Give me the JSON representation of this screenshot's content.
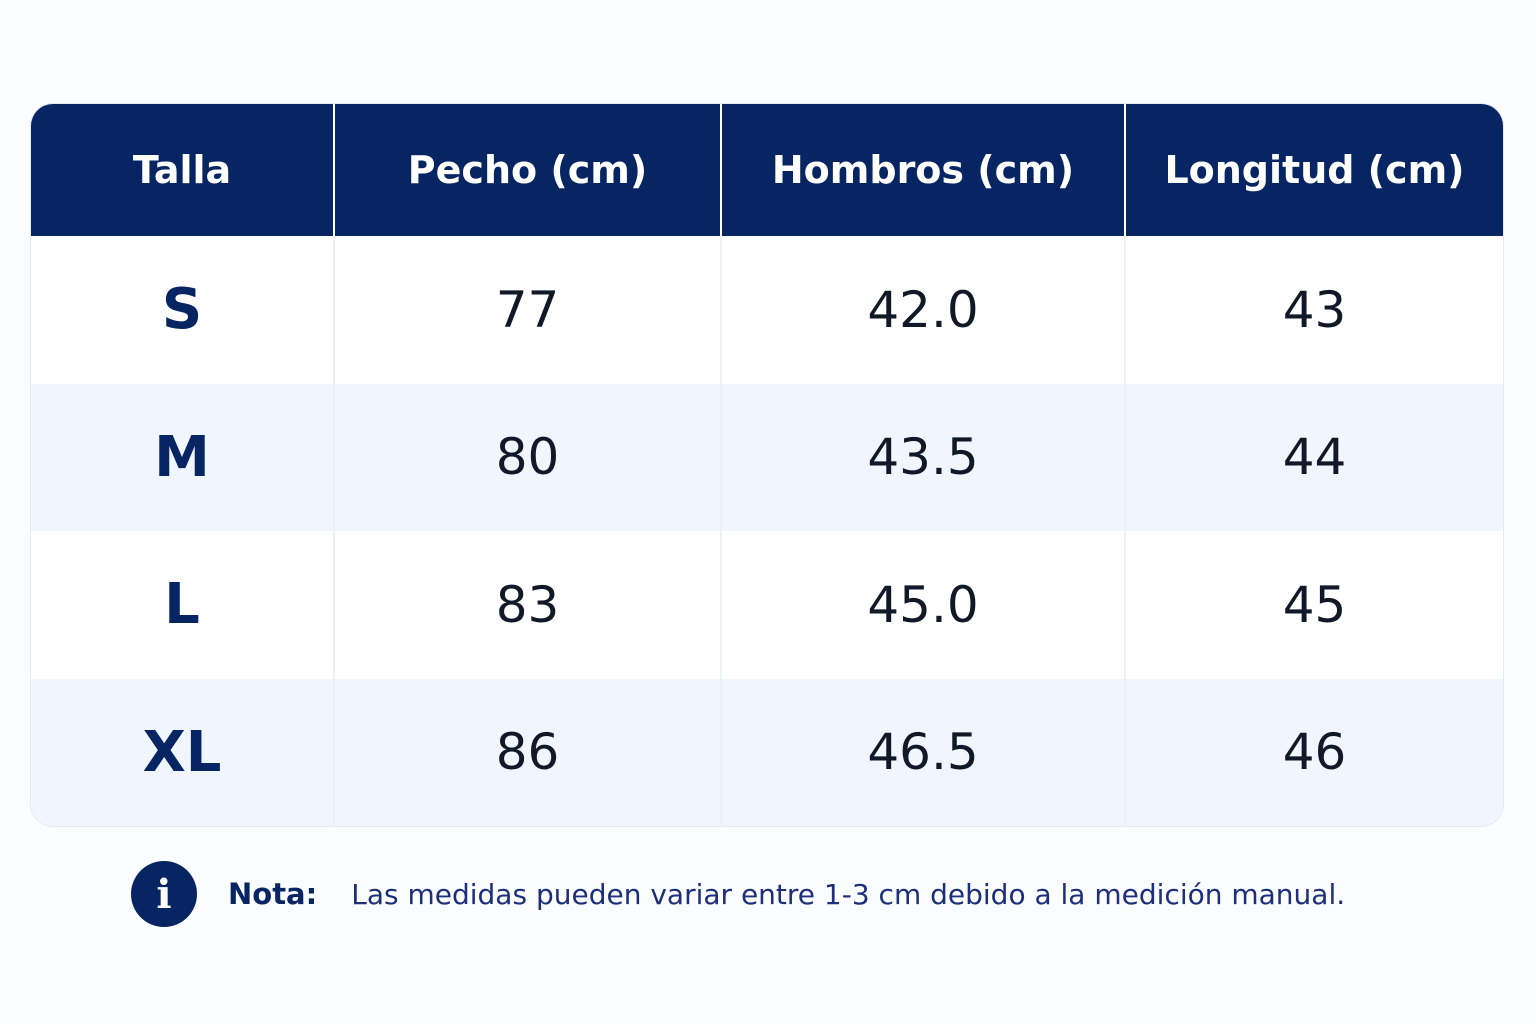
{
  "table": {
    "headers": [
      "Talla",
      "Pecho (cm)",
      "Hombros (cm)",
      "Longitud (cm)"
    ],
    "rows": [
      [
        "S",
        "77",
        "42.0",
        "43"
      ],
      [
        "M",
        "80",
        "43.5",
        "44"
      ],
      [
        "L",
        "83",
        "45.0",
        "45"
      ],
      [
        "XL",
        "86",
        "46.5",
        "46"
      ]
    ]
  },
  "note": {
    "icon": "info-icon",
    "label": "Nota:",
    "text": "Las medidas pueden variar entre 1-3 cm debido a la medición manual."
  },
  "colors": {
    "header_bg": "#072463",
    "accent_text": "#072463",
    "stripe": "#f1f5fd"
  }
}
